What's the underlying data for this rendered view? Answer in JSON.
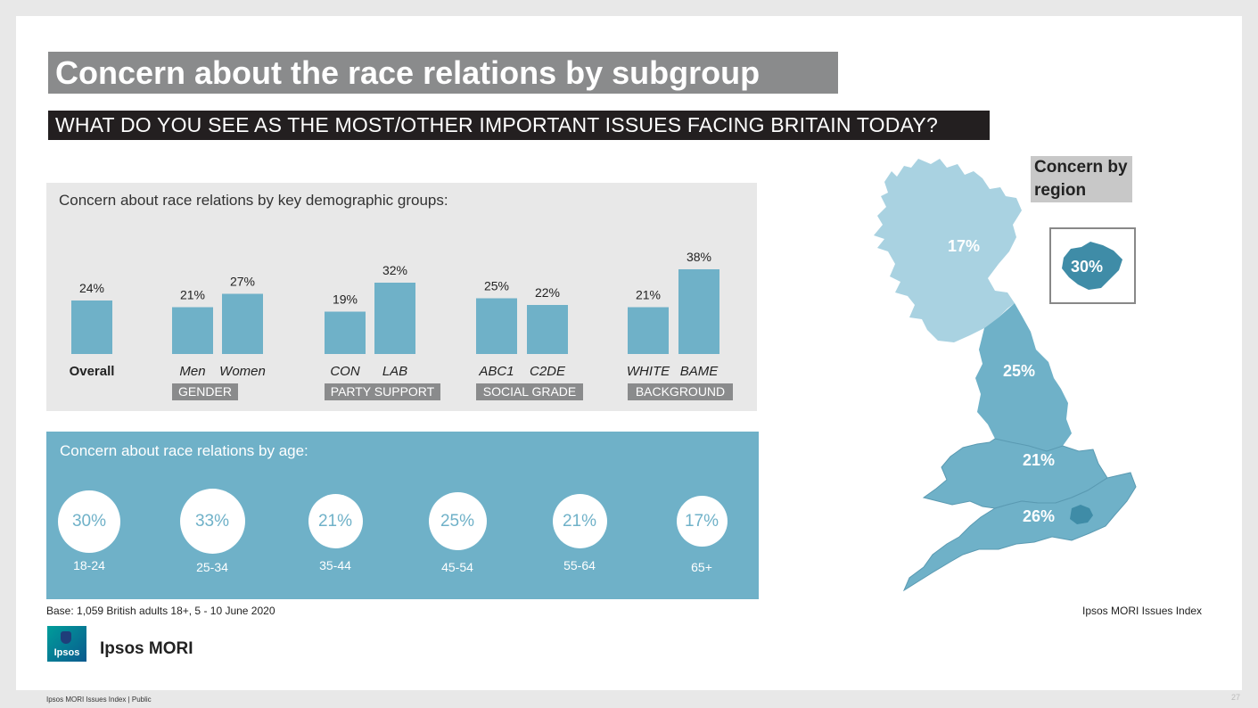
{
  "title": "Concern about the race relations by subgroup",
  "subtitle": "WHAT DO YOU SEE AS THE MOST/OTHER IMPORTANT ISSUES FACING BRITAIN TODAY?",
  "demo_panel_title": "Concern about race relations by key demographic groups:",
  "age_panel_title": "Concern about race relations by age:",
  "groups": [
    "GENDER",
    "PARTY SUPPORT",
    "SOCIAL GRADE",
    "BACKGROUND"
  ],
  "region_title_line1": "Concern by",
  "region_title_line2": "region",
  "base_note": "Base: 1,059 British adults 18+, 5 - 10 June 2020",
  "source_note": "Ipsos MORI Issues Index",
  "logo_text": "Ipsos",
  "brand": "Ipsos MORI",
  "footer": "Ipsos MORI Issues Index | Public",
  "page_number": "27",
  "colors": {
    "bar": "#6fb1c8",
    "scotland": "#a9d2e1",
    "england_wales": "#6fb1c8",
    "london": "#3f8ca7",
    "title_bg": "#8a8b8c",
    "subtitle_bg": "#231f20"
  },
  "chart_data": [
    {
      "type": "bar",
      "title": "Concern about race relations by key demographic groups:",
      "ylim": [
        0,
        40
      ],
      "categories": [
        "Overall",
        "Men",
        "Women",
        "CON",
        "LAB",
        "ABC1",
        "C2DE",
        "WHITE",
        "BAME"
      ],
      "values": [
        24,
        21,
        27,
        19,
        32,
        25,
        22,
        21,
        38
      ],
      "labels": [
        "24%",
        "21%",
        "27%",
        "19%",
        "32%",
        "25%",
        "22%",
        "21%",
        "38%"
      ],
      "category_groups": [
        "",
        "GENDER",
        "GENDER",
        "PARTY SUPPORT",
        "PARTY SUPPORT",
        "SOCIAL GRADE",
        "SOCIAL GRADE",
        "BACKGROUND",
        "BACKGROUND"
      ]
    },
    {
      "type": "bubble",
      "title": "Concern about race relations by age:",
      "categories": [
        "18-24",
        "25-34",
        "35-44",
        "45-54",
        "55-64",
        "65+"
      ],
      "values": [
        30,
        33,
        21,
        25,
        21,
        17
      ],
      "labels": [
        "30%",
        "33%",
        "21%",
        "25%",
        "21%",
        "17%"
      ]
    },
    {
      "type": "map",
      "title": "Concern by region",
      "regions": [
        {
          "name": "Scotland",
          "value": 17,
          "label": "17%"
        },
        {
          "name": "North",
          "value": 25,
          "label": "25%"
        },
        {
          "name": "Midlands & Wales",
          "value": 21,
          "label": "21%"
        },
        {
          "name": "South",
          "value": 26,
          "label": "26%"
        },
        {
          "name": "London",
          "value": 30,
          "label": "30%"
        }
      ]
    }
  ]
}
